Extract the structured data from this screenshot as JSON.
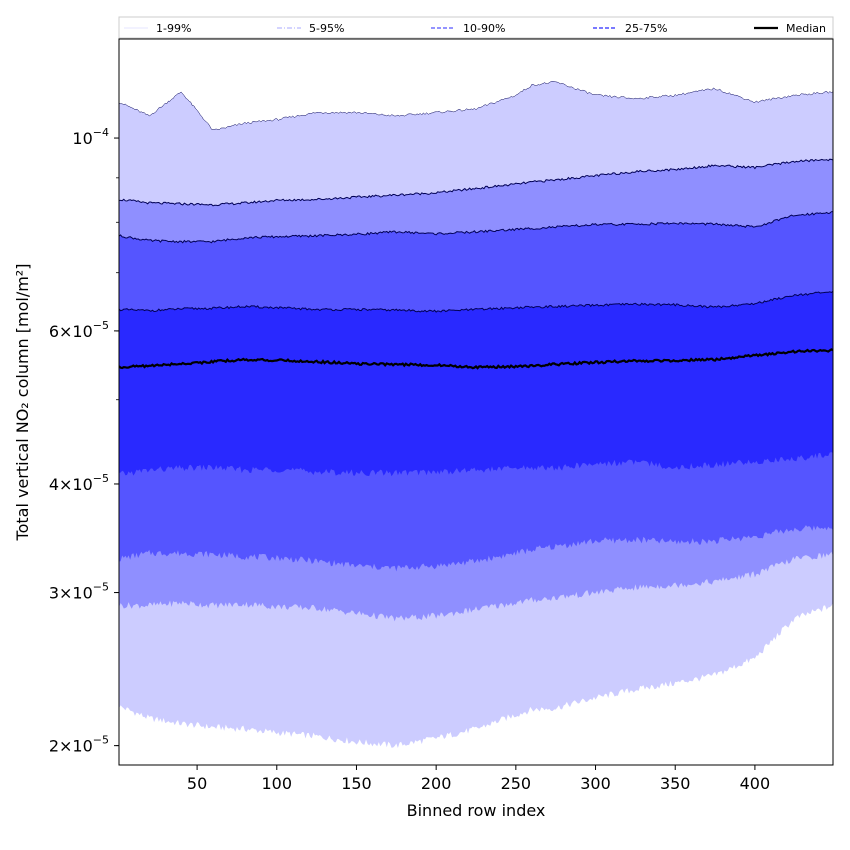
{
  "chart_data": {
    "type": "area",
    "xlabel": "Binned row index",
    "ylabel": "Total vertical NO₂ column [mol/m²]",
    "yscale": "log",
    "xlim": [
      1,
      449
    ],
    "ylim": [
      1.9e-05,
      0.00013
    ],
    "xticks": [
      50,
      100,
      150,
      200,
      250,
      300,
      350,
      400
    ],
    "xtick_labels": [
      "50",
      "100",
      "150",
      "200",
      "250",
      "300",
      "350",
      "400"
    ],
    "yticks": [
      {
        "value": 0.0001,
        "mantissa": "",
        "base": "10",
        "exponent": "−4"
      },
      {
        "value": 6e-05,
        "mantissa": "6",
        "base": "10",
        "exponent": "−5"
      },
      {
        "value": 4e-05,
        "mantissa": "4",
        "base": "10",
        "exponent": "−5"
      },
      {
        "value": 3e-05,
        "mantissa": "3",
        "base": "10",
        "exponent": "−5"
      },
      {
        "value": 2e-05,
        "mantissa": "2",
        "base": "10",
        "exponent": "−5"
      }
    ],
    "x": [
      1,
      20,
      40,
      60,
      80,
      100,
      125,
      150,
      175,
      200,
      225,
      250,
      260,
      275,
      300,
      325,
      350,
      375,
      400,
      425,
      449
    ],
    "bands": [
      {
        "name": "1-99%",
        "color": "#ccccff",
        "lower": [
          2.22e-05,
          2.15e-05,
          2.12e-05,
          2.1e-05,
          2.09e-05,
          2.07e-05,
          2.05e-05,
          2.02e-05,
          2e-05,
          2.04e-05,
          2.09e-05,
          2.17e-05,
          2.2e-05,
          2.21e-05,
          2.27e-05,
          2.32e-05,
          2.36e-05,
          2.41e-05,
          2.52e-05,
          2.8e-05,
          2.9e-05
        ],
        "upper": [
          0.00011,
          0.000106,
          0.000113,
          0.000102,
          0.000104,
          0.000105,
          0.000107,
          0.000107,
          0.000106,
          0.000107,
          0.000108,
          0.000112,
          0.000115,
          0.000116,
          0.000112,
          0.000111,
          0.000112,
          0.000114,
          0.00011,
          0.000112,
          0.000113
        ]
      },
      {
        "name": "5-95%",
        "color": "#8f8fff",
        "lower": [
          2.9e-05,
          2.9e-05,
          2.92e-05,
          2.9e-05,
          2.91e-05,
          2.89e-05,
          2.88e-05,
          2.84e-05,
          2.8e-05,
          2.82e-05,
          2.87e-05,
          2.92e-05,
          2.94e-05,
          2.96e-05,
          3e-05,
          3.04e-05,
          3.06e-05,
          3.09e-05,
          3.15e-05,
          3.28e-05,
          3.32e-05
        ],
        "upper": [
          8.5e-05,
          8.42e-05,
          8.4e-05,
          8.38e-05,
          8.42e-05,
          8.48e-05,
          8.5e-05,
          8.55e-05,
          8.6e-05,
          8.65e-05,
          8.75e-05,
          8.85e-05,
          8.9e-05,
          8.95e-05,
          9.05e-05,
          9.15e-05,
          9.2e-05,
          9.3e-05,
          9.25e-05,
          9.4e-05,
          9.45e-05
        ]
      },
      {
        "name": "10-90%",
        "color": "#5555ff",
        "lower": [
          3.28e-05,
          3.33e-05,
          3.33e-05,
          3.32e-05,
          3.3e-05,
          3.29e-05,
          3.26e-05,
          3.22e-05,
          3.2e-05,
          3.22e-05,
          3.26e-05,
          3.33e-05,
          3.36e-05,
          3.39e-05,
          3.44e-05,
          3.45e-05,
          3.43e-05,
          3.44e-05,
          3.48e-05,
          3.55e-05,
          3.57e-05
        ],
        "upper": [
          7.72e-05,
          7.62e-05,
          7.6e-05,
          7.6e-05,
          7.68e-05,
          7.7e-05,
          7.72e-05,
          7.75e-05,
          7.8e-05,
          7.76e-05,
          7.8e-05,
          7.85e-05,
          7.87e-05,
          7.9e-05,
          7.95e-05,
          7.96e-05,
          7.98e-05,
          7.96e-05,
          7.9e-05,
          8.15e-05,
          8.22e-05
        ]
      },
      {
        "name": "25-75%",
        "color": "#2929ff",
        "lower": [
          4.1e-05,
          4.15e-05,
          4.17e-05,
          4.18e-05,
          4.15e-05,
          4.16e-05,
          4.13e-05,
          4.12e-05,
          4.12e-05,
          4.13e-05,
          4.15e-05,
          4.17e-05,
          4.18e-05,
          4.17e-05,
          4.22e-05,
          4.24e-05,
          4.18e-05,
          4.21e-05,
          4.24e-05,
          4.28e-05,
          4.33e-05
        ],
        "upper": [
          6.35e-05,
          6.33e-05,
          6.36e-05,
          6.37e-05,
          6.4e-05,
          6.38e-05,
          6.35e-05,
          6.35e-05,
          6.34e-05,
          6.32e-05,
          6.35e-05,
          6.38e-05,
          6.39e-05,
          6.4e-05,
          6.42e-05,
          6.44e-05,
          6.43e-05,
          6.39e-05,
          6.45e-05,
          6.6e-05,
          6.65e-05
        ]
      }
    ],
    "median": {
      "name": "Median",
      "color": "#000000",
      "values": [
        5.45e-05,
        5.47e-05,
        5.5e-05,
        5.53e-05,
        5.56e-05,
        5.55e-05,
        5.53e-05,
        5.5e-05,
        5.49e-05,
        5.48e-05,
        5.45e-05,
        5.46e-05,
        5.47e-05,
        5.49e-05,
        5.52e-05,
        5.54e-05,
        5.55e-05,
        5.56e-05,
        5.62e-05,
        5.68e-05,
        5.7e-05
      ]
    },
    "legend": {
      "placement": "top, outside above axes",
      "entries": [
        {
          "label": "1-99%",
          "color": "#ccccff",
          "style": "solid-thin"
        },
        {
          "label": "5-95%",
          "color": "#8f8fff",
          "style": "dashdot-thin"
        },
        {
          "label": "10-90%",
          "color": "#5555ff",
          "style": "dashed"
        },
        {
          "label": "25-75%",
          "color": "#2929ff",
          "style": "dashed"
        },
        {
          "label": "Median",
          "color": "#000000",
          "style": "solid-thick"
        }
      ]
    },
    "grid": false
  }
}
